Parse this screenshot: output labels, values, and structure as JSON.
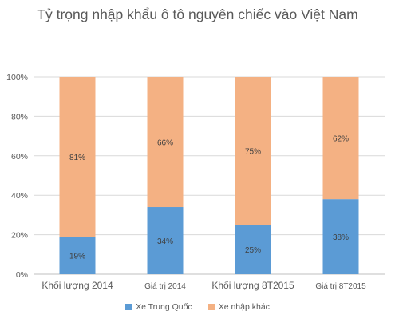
{
  "chart_data": {
    "type": "bar",
    "stacked": true,
    "title": "Tỷ trọng nhập khẩu ô tô nguyên chiếc vào Việt Nam",
    "categories": [
      "Khối lượng 2014",
      "Giá trị 2014",
      "Khối lượng 8T2015",
      "Giá trị 8T2015"
    ],
    "series": [
      {
        "name": "Xe Trung Quốc",
        "values": [
          19,
          34,
          25,
          38
        ],
        "labels": [
          "19%",
          "34%",
          "25%",
          "38%"
        ],
        "color": "#5b9bd5"
      },
      {
        "name": "Xe nhập khác",
        "values": [
          81,
          66,
          75,
          62
        ],
        "labels": [
          "81%",
          "66%",
          "75%",
          "62%"
        ],
        "color": "#f4b183"
      }
    ],
    "ylim": [
      0,
      100
    ],
    "yticks": [
      "0%",
      "20%",
      "40%",
      "60%",
      "80%",
      "100%"
    ],
    "grid": true,
    "legend_position": "bottom",
    "xlabel": "",
    "ylabel": ""
  }
}
